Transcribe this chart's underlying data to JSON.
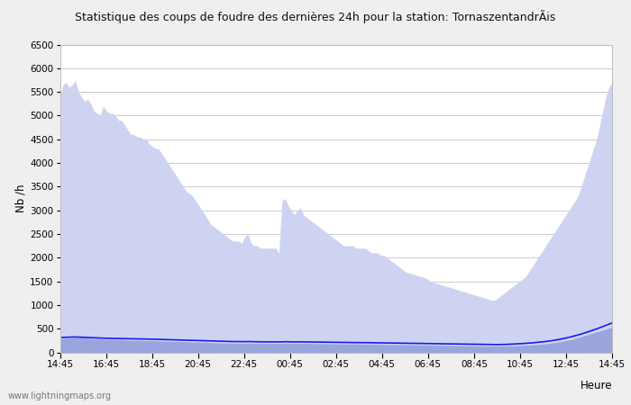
{
  "title": "Statistique des coups de foudre des dernières 24h pour la station: TornaszentandrÃis",
  "ylabel": "Nb /h",
  "xlabel_right": "Heure",
  "watermark": "www.lightningmaps.org",
  "yticks": [
    0,
    500,
    1000,
    1500,
    2000,
    2500,
    3000,
    3500,
    4000,
    4500,
    5000,
    5500,
    6000,
    6500
  ],
  "xtick_labels": [
    "14:45",
    "16:45",
    "18:45",
    "20:45",
    "22:45",
    "00:45",
    "02:45",
    "04:45",
    "06:45",
    "08:45",
    "10:45",
    "12:45",
    "14:45"
  ],
  "background_color": "#efefef",
  "plot_bg_color": "#ffffff",
  "grid_color": "#cccccc",
  "total_foudre_color": "#cdd3f0",
  "foudre_detectee_color": "#9aa5de",
  "moyenne_color": "#1a1aee",
  "ylim": [
    0,
    6500
  ],
  "total_foudre": [
    5400,
    5650,
    5700,
    5600,
    5650,
    5750,
    5500,
    5400,
    5300,
    5350,
    5250,
    5100,
    5050,
    5000,
    5200,
    5100,
    5050,
    5050,
    5000,
    4900,
    4900,
    4800,
    4700,
    4600,
    4600,
    4550,
    4550,
    4500,
    4500,
    4400,
    4350,
    4300,
    4300,
    4200,
    4100,
    4000,
    3900,
    3800,
    3700,
    3600,
    3500,
    3400,
    3350,
    3300,
    3200,
    3100,
    3000,
    2900,
    2800,
    2700,
    2650,
    2600,
    2550,
    2500,
    2450,
    2400,
    2350,
    2350,
    2350,
    2300,
    2450,
    2500,
    2300,
    2250,
    2250,
    2200,
    2200,
    2200,
    2200,
    2200,
    2200,
    2100,
    3200,
    3250,
    3100,
    3000,
    2900,
    3000,
    3050,
    2900,
    2850,
    2800,
    2750,
    2700,
    2650,
    2600,
    2550,
    2500,
    2450,
    2400,
    2350,
    2300,
    2250,
    2250,
    2250,
    2250,
    2200,
    2200,
    2200,
    2200,
    2150,
    2100,
    2100,
    2100,
    2050,
    2050,
    2000,
    1950,
    1900,
    1850,
    1800,
    1750,
    1700,
    1680,
    1660,
    1640,
    1620,
    1600,
    1580,
    1560,
    1500,
    1480,
    1460,
    1440,
    1420,
    1400,
    1380,
    1360,
    1340,
    1320,
    1300,
    1280,
    1260,
    1240,
    1220,
    1200,
    1180,
    1160,
    1140,
    1120,
    1100,
    1100,
    1150,
    1200,
    1250,
    1300,
    1350,
    1400,
    1450,
    1500,
    1550,
    1600,
    1700,
    1800,
    1900,
    2000,
    2100,
    2200,
    2300,
    2400,
    2500,
    2600,
    2700,
    2800,
    2900,
    3000,
    3100,
    3200,
    3300,
    3500,
    3700,
    3900,
    4100,
    4300,
    4500,
    4800,
    5100,
    5400,
    5600,
    5700
  ],
  "foudre_detectee": [
    280,
    290,
    295,
    300,
    305,
    310,
    315,
    310,
    305,
    300,
    295,
    290,
    285,
    280,
    280,
    275,
    275,
    275,
    275,
    270,
    270,
    265,
    260,
    255,
    255,
    255,
    250,
    250,
    250,
    248,
    245,
    243,
    242,
    240,
    238,
    236,
    233,
    230,
    228,
    226,
    224,
    222,
    220,
    218,
    216,
    214,
    212,
    210,
    208,
    205,
    203,
    201,
    200,
    198,
    197,
    195,
    194,
    193,
    192,
    191,
    193,
    195,
    193,
    191,
    190,
    189,
    188,
    188,
    188,
    188,
    187,
    186,
    190,
    193,
    191,
    189,
    188,
    190,
    191,
    189,
    188,
    187,
    186,
    185,
    184,
    183,
    182,
    181,
    180,
    179,
    178,
    177,
    176,
    175,
    175,
    175,
    175,
    175,
    174,
    173,
    172,
    171,
    170,
    170,
    169,
    168,
    167,
    166,
    165,
    164,
    163,
    162,
    161,
    160,
    159,
    158,
    157,
    156,
    155,
    154,
    152,
    150,
    149,
    148,
    147,
    146,
    145,
    144,
    143,
    142,
    141,
    140,
    139,
    138,
    137,
    136,
    135,
    134,
    133,
    132,
    131,
    131,
    132,
    133,
    134,
    136,
    138,
    140,
    142,
    145,
    148,
    151,
    154,
    158,
    162,
    167,
    172,
    178,
    185,
    193,
    201,
    211,
    222,
    234,
    247,
    261,
    276,
    292,
    310,
    330,
    350,
    370,
    390,
    410,
    430,
    450,
    470,
    490,
    510,
    530
  ],
  "moyenne": [
    310,
    315,
    318,
    320,
    322,
    325,
    322,
    318,
    315,
    312,
    310,
    308,
    305,
    302,
    300,
    298,
    296,
    294,
    293,
    292,
    291,
    290,
    288,
    286,
    285,
    284,
    283,
    282,
    281,
    280,
    278,
    276,
    275,
    273,
    272,
    270,
    268,
    266,
    264,
    262,
    260,
    258,
    256,
    254,
    252,
    250,
    248,
    246,
    244,
    242,
    240,
    238,
    236,
    234,
    232,
    230,
    228,
    227,
    226,
    225,
    226,
    228,
    226,
    224,
    223,
    222,
    222,
    222,
    222,
    222,
    221,
    220,
    222,
    225,
    223,
    221,
    220,
    222,
    223,
    221,
    220,
    219,
    218,
    217,
    216,
    215,
    214,
    213,
    212,
    211,
    210,
    209,
    208,
    207,
    207,
    207,
    207,
    207,
    206,
    205,
    204,
    203,
    202,
    202,
    201,
    200,
    199,
    198,
    197,
    196,
    195,
    194,
    193,
    192,
    191,
    190,
    189,
    188,
    187,
    186,
    184,
    182,
    181,
    180,
    179,
    178,
    177,
    176,
    175,
    174,
    173,
    172,
    171,
    170,
    169,
    168,
    167,
    166,
    165,
    164,
    163,
    163,
    164,
    165,
    167,
    169,
    172,
    175,
    178,
    182,
    186,
    190,
    195,
    200,
    206,
    212,
    218,
    225,
    233,
    242,
    252,
    263,
    275,
    288,
    302,
    317,
    333,
    350,
    368,
    387,
    407,
    428,
    450,
    472,
    495,
    520,
    545,
    570,
    595,
    620
  ]
}
